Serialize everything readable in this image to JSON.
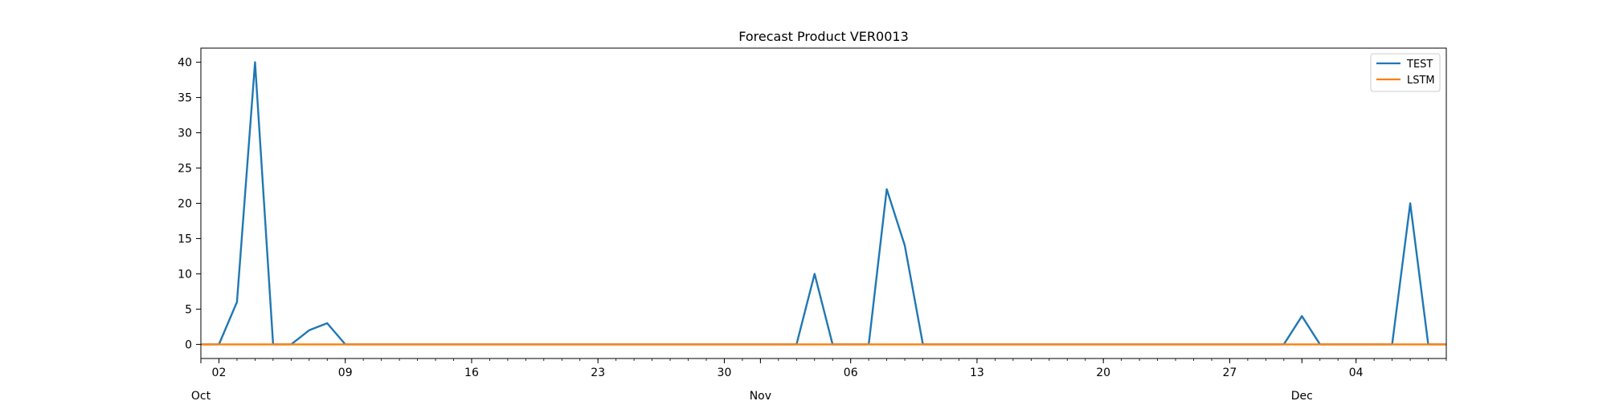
{
  "chart_data": {
    "type": "line",
    "title": "Forecast Product VER0013",
    "xlabel": "",
    "ylabel": "",
    "x_start": "2023-10-01",
    "x_end": "2023-12-09",
    "ylim": [
      -2,
      42
    ],
    "yticks": [
      0,
      5,
      10,
      15,
      20,
      25,
      30,
      35,
      40
    ],
    "xticks": [
      {
        "date": "2023-10-02",
        "label": "02"
      },
      {
        "date": "2023-10-09",
        "label": "09"
      },
      {
        "date": "2023-10-16",
        "label": "16"
      },
      {
        "date": "2023-10-23",
        "label": "23"
      },
      {
        "date": "2023-10-30",
        "label": "30"
      },
      {
        "date": "2023-11-06",
        "label": "06"
      },
      {
        "date": "2023-11-13",
        "label": "13"
      },
      {
        "date": "2023-11-20",
        "label": "20"
      },
      {
        "date": "2023-11-27",
        "label": "27"
      },
      {
        "date": "2023-12-04",
        "label": "04"
      }
    ],
    "month_labels": [
      {
        "date": "2023-10-01",
        "label": "Oct"
      },
      {
        "date": "2023-11-01",
        "label": "Nov"
      },
      {
        "date": "2023-12-01",
        "label": "Dec"
      }
    ],
    "legend_position": "top-right",
    "grid": false,
    "series": [
      {
        "name": "TEST",
        "color": "#1f77b4",
        "points": [
          [
            "2023-10-01",
            0
          ],
          [
            "2023-10-02",
            0
          ],
          [
            "2023-10-03",
            6
          ],
          [
            "2023-10-04",
            40
          ],
          [
            "2023-10-05",
            0
          ],
          [
            "2023-10-06",
            0
          ],
          [
            "2023-10-07",
            2
          ],
          [
            "2023-10-08",
            3
          ],
          [
            "2023-10-09",
            0
          ],
          [
            "2023-11-03",
            0
          ],
          [
            "2023-11-04",
            10
          ],
          [
            "2023-11-05",
            0
          ],
          [
            "2023-11-07",
            0
          ],
          [
            "2023-11-08",
            22
          ],
          [
            "2023-11-09",
            14
          ],
          [
            "2023-11-10",
            0
          ],
          [
            "2023-11-30",
            0
          ],
          [
            "2023-12-01",
            4
          ],
          [
            "2023-12-02",
            0
          ],
          [
            "2023-12-06",
            0
          ],
          [
            "2023-12-07",
            20
          ],
          [
            "2023-12-08",
            0
          ],
          [
            "2023-12-09",
            0
          ]
        ]
      },
      {
        "name": "LSTM",
        "color": "#ff7f0e",
        "points": [
          [
            "2023-10-01",
            0
          ],
          [
            "2023-12-09",
            0
          ]
        ]
      }
    ]
  }
}
